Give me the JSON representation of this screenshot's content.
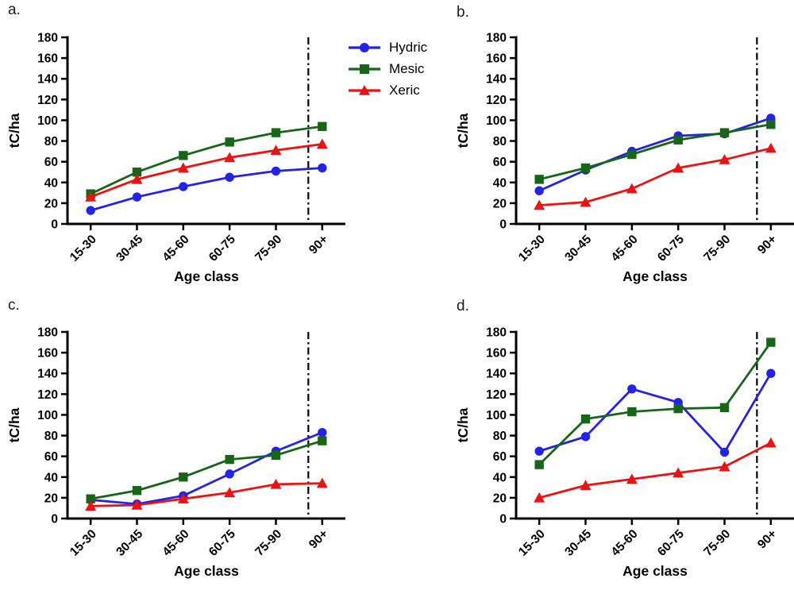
{
  "figure": {
    "type": "multi-panel line figure",
    "panels": [
      "a.",
      "b.",
      "c.",
      "d."
    ]
  },
  "legend": {
    "position": "right of panel a",
    "items": [
      {
        "label": "Hydric",
        "marker": "circle-icon",
        "color": "#2222EB"
      },
      {
        "label": "Mesic",
        "marker": "square-icon",
        "color": "#176617"
      },
      {
        "label": "Xeric",
        "marker": "triangle-icon",
        "color": "#EE1111"
      }
    ]
  },
  "axes_shared": {
    "ylabel": "tC/ha",
    "xlabel": "Age class",
    "ymin": 0,
    "ymax": 180,
    "ystep": 20,
    "grid": false,
    "dash_line_color": "#000000"
  },
  "chart_data": [
    {
      "panel": "a.",
      "type": "line",
      "categories": [
        "15-30",
        "30-45",
        "45-60",
        "60-75",
        "75-90",
        "90+"
      ],
      "xlabel": "Age class",
      "ylabel": "tC/ha",
      "ylim": [
        0,
        180
      ],
      "dashed_line_at_category_index": 4.7,
      "series": [
        {
          "name": "Hydric",
          "marker": "circle",
          "color": "#2222EB",
          "values": [
            13,
            26,
            36,
            45,
            51,
            54
          ]
        },
        {
          "name": "Mesic",
          "marker": "square",
          "color": "#176617",
          "values": [
            29,
            50,
            66,
            79,
            88,
            94
          ]
        },
        {
          "name": "Xeric",
          "marker": "triangle",
          "color": "#EE1111",
          "values": [
            26,
            43,
            54,
            64,
            71,
            77
          ]
        }
      ]
    },
    {
      "panel": "b.",
      "type": "line",
      "categories": [
        "15-30",
        "30-45",
        "45-60",
        "60-75",
        "75-90",
        "90+"
      ],
      "xlabel": "Age class",
      "ylabel": "tC/ha",
      "ylim": [
        0,
        180
      ],
      "dashed_line_at_category_index": 4.7,
      "series": [
        {
          "name": "Hydric",
          "marker": "circle",
          "color": "#2222EB",
          "values": [
            32,
            52,
            70,
            85,
            87,
            102
          ]
        },
        {
          "name": "Mesic",
          "marker": "square",
          "color": "#176617",
          "values": [
            43,
            54,
            67,
            81,
            88,
            96
          ]
        },
        {
          "name": "Xeric",
          "marker": "triangle",
          "color": "#EE1111",
          "values": [
            18,
            21,
            34,
            54,
            62,
            73
          ]
        }
      ]
    },
    {
      "panel": "c.",
      "type": "line",
      "categories": [
        "15-30",
        "30-45",
        "45-60",
        "60-75",
        "75-90",
        "90+"
      ],
      "xlabel": "Age class",
      "ylabel": "tC/ha",
      "ylim": [
        0,
        180
      ],
      "dashed_line_at_category_index": 4.7,
      "series": [
        {
          "name": "Hydric",
          "marker": "circle",
          "color": "#2222EB",
          "values": [
            18,
            14,
            22,
            43,
            65,
            83
          ]
        },
        {
          "name": "Mesic",
          "marker": "square",
          "color": "#176617",
          "values": [
            19,
            27,
            40,
            57,
            61,
            75
          ]
        },
        {
          "name": "Xeric",
          "marker": "triangle",
          "color": "#EE1111",
          "values": [
            12,
            13,
            19,
            25,
            33,
            34
          ]
        }
      ]
    },
    {
      "panel": "d.",
      "type": "line",
      "categories": [
        "15-30",
        "30-45",
        "45-60",
        "60-75",
        "75-90",
        "90+"
      ],
      "xlabel": "Age class",
      "ylabel": "tC/ha",
      "ylim": [
        0,
        180
      ],
      "dashed_line_at_category_index": 4.7,
      "series": [
        {
          "name": "Hydric",
          "marker": "circle",
          "color": "#2222EB",
          "values": [
            65,
            79,
            125,
            112,
            64,
            140
          ]
        },
        {
          "name": "Mesic",
          "marker": "square",
          "color": "#176617",
          "values": [
            52,
            96,
            103,
            106,
            107,
            170
          ]
        },
        {
          "name": "Xeric",
          "marker": "triangle",
          "color": "#EE1111",
          "values": [
            20,
            32,
            38,
            44,
            50,
            73
          ]
        }
      ]
    }
  ]
}
